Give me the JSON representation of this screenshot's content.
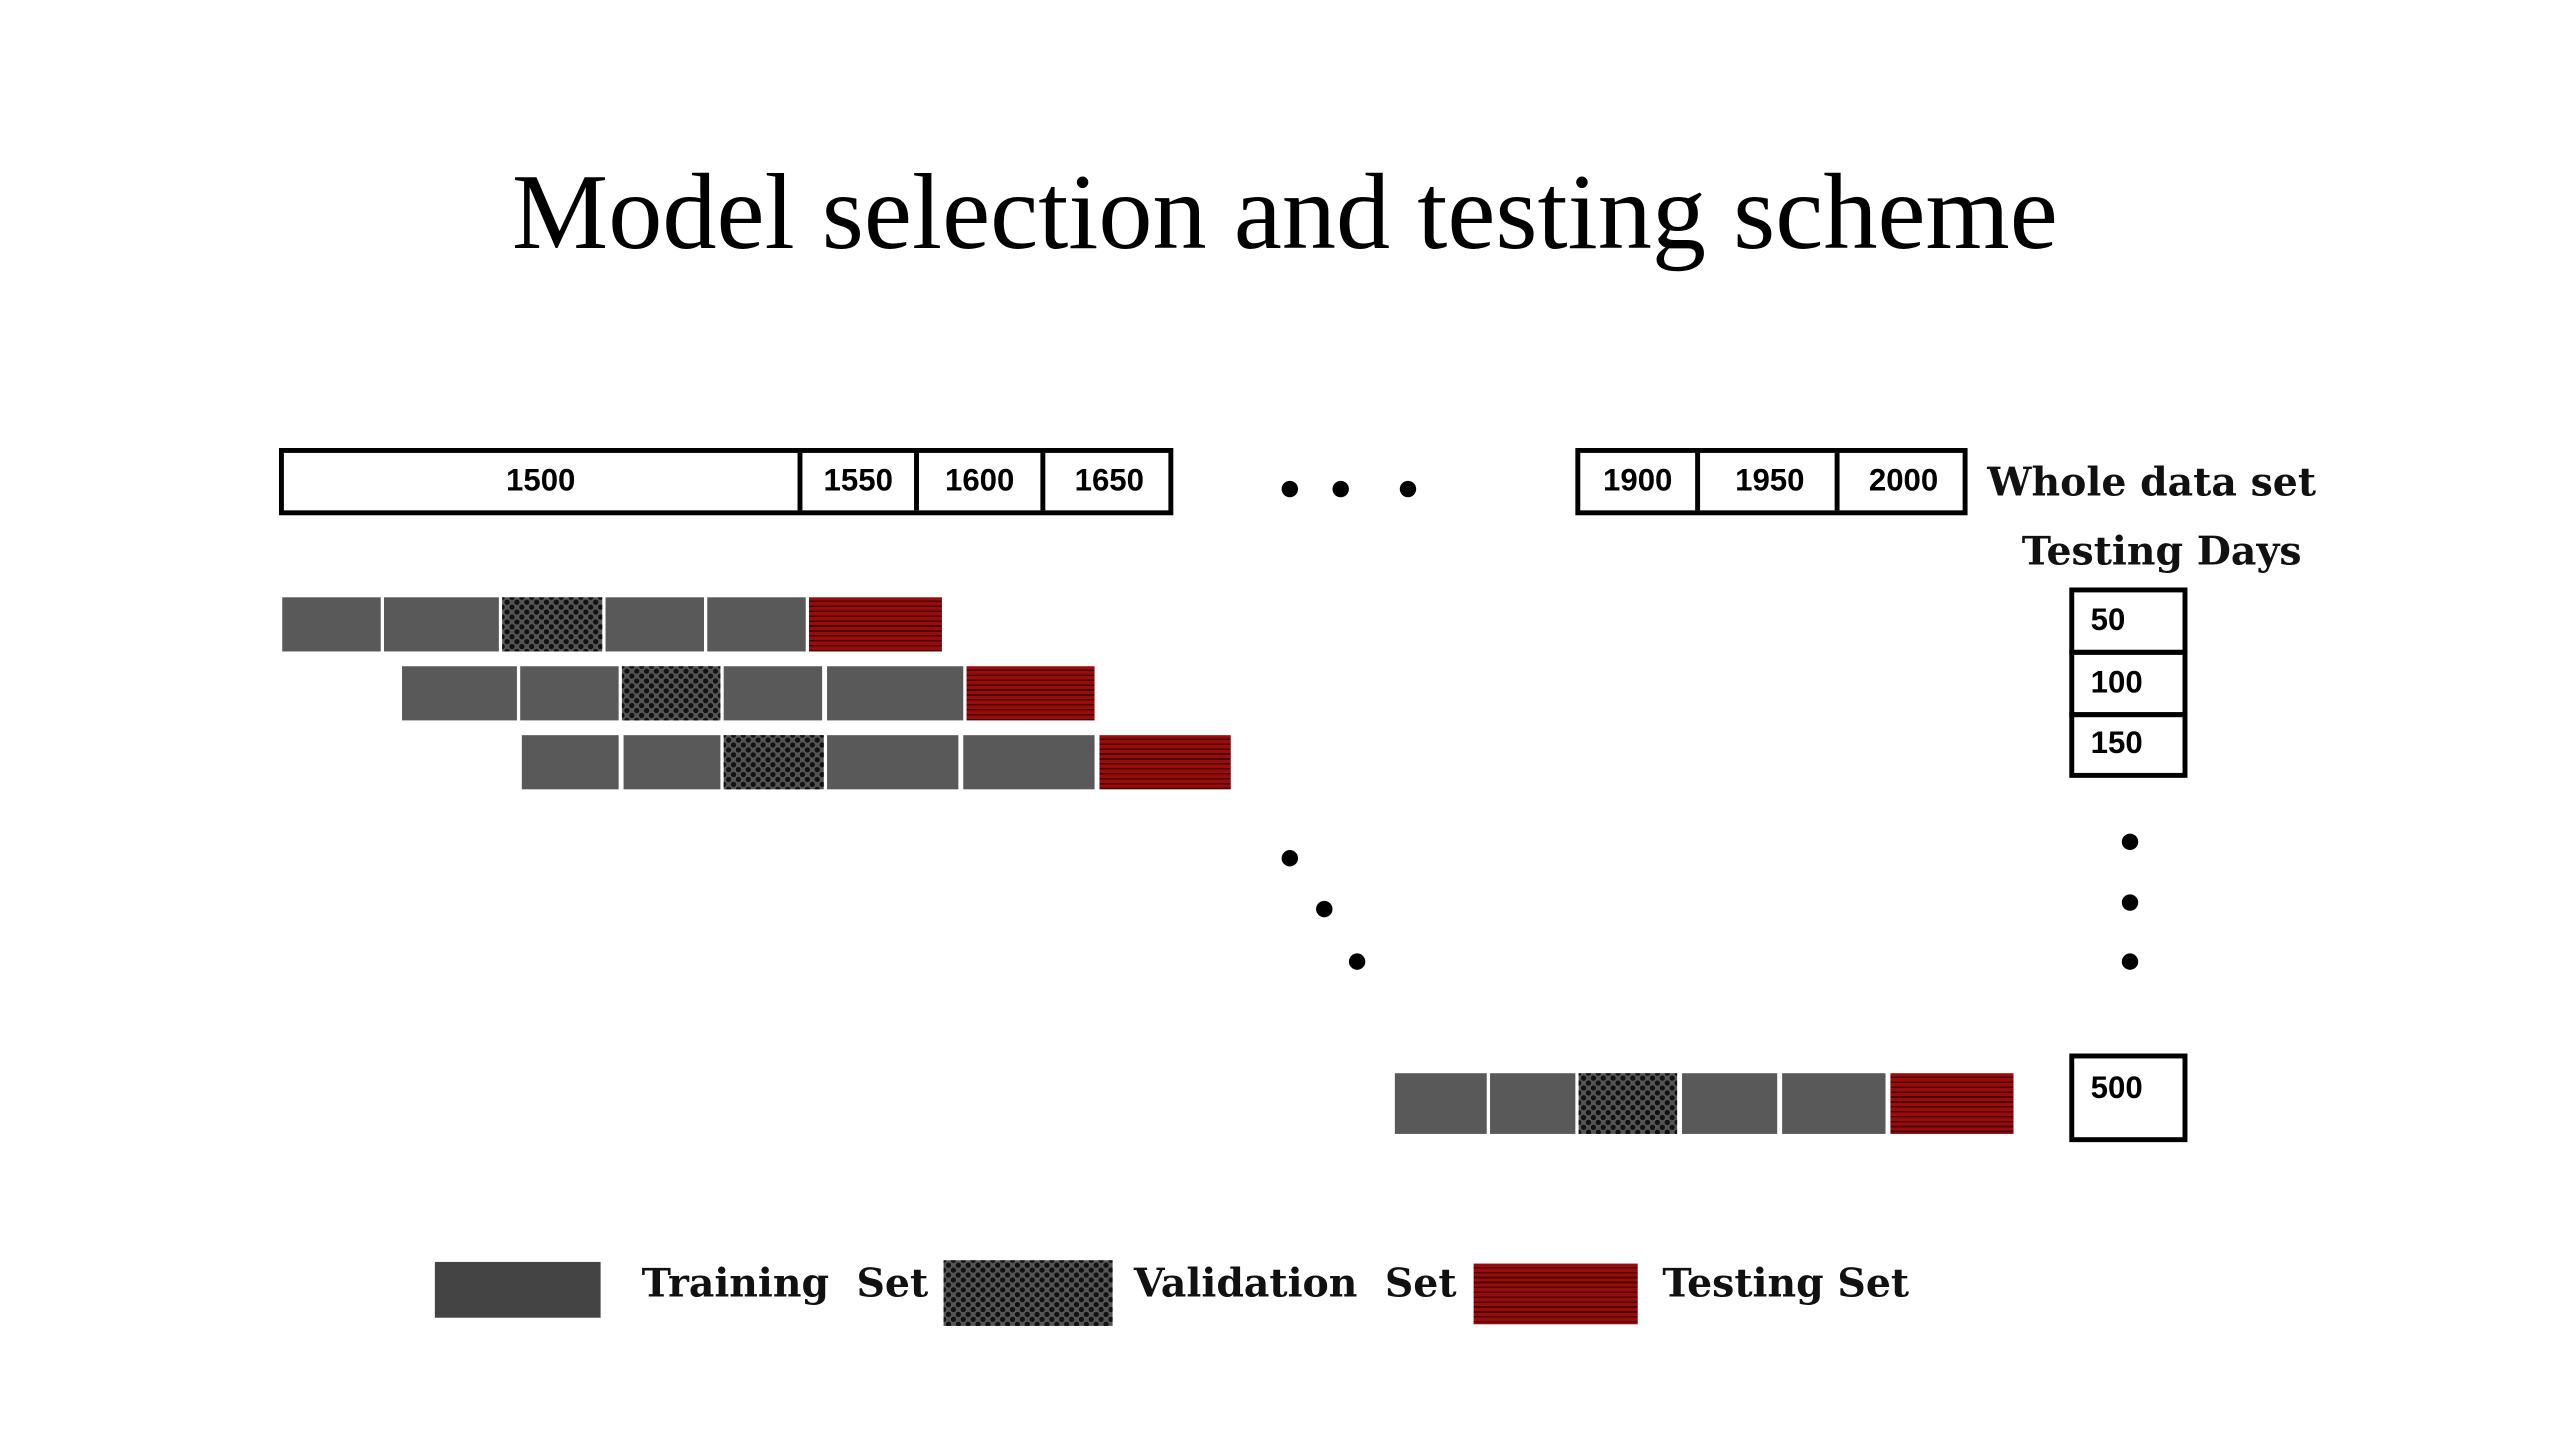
{
  "title": "Model selection and testing scheme",
  "whole_data_set": {
    "label": "Whole data set",
    "left_cells": [
      "1500",
      "1550",
      "1600",
      "1650"
    ],
    "right_cells": [
      "1900",
      "1950",
      "2000"
    ]
  },
  "testing_days": {
    "label": "Testing Days",
    "values": [
      "50",
      "100",
      "150"
    ],
    "last_value": "500"
  },
  "legend": {
    "training": "Training  Set",
    "validation": "Validation  Set",
    "testing": "Testing Set"
  },
  "colors": {
    "training": "#595959",
    "validation": "#333333",
    "testing": "#8b0a0a"
  },
  "rows": [
    [
      "training",
      "training",
      "validation",
      "training",
      "training",
      "testing"
    ],
    [
      "training",
      "training",
      "validation",
      "training",
      "training",
      "testing"
    ],
    [
      "training",
      "training",
      "validation",
      "training",
      "training",
      "testing"
    ],
    [
      "training",
      "training",
      "validation",
      "training",
      "training",
      "testing"
    ]
  ]
}
